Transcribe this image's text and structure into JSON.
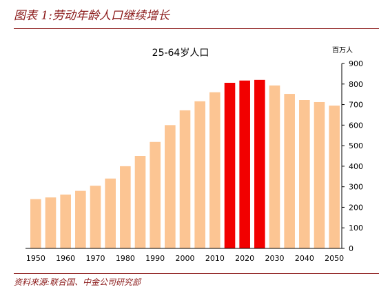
{
  "figure": {
    "title": "图表 1:劳动年龄人口继续增长",
    "source": "资料来源:联合国、中金公司研究部"
  },
  "chart_data": {
    "type": "bar",
    "title": "25-64岁人口",
    "ylabel": "百万人",
    "ylim": [
      0,
      900
    ],
    "yticks": [
      0,
      100,
      200,
      300,
      400,
      500,
      600,
      700,
      800,
      900
    ],
    "y_axis_position": "right",
    "grid": false,
    "categories": [
      1950,
      1955,
      1960,
      1965,
      1970,
      1975,
      1980,
      1985,
      1990,
      1995,
      2000,
      2005,
      2010,
      2015,
      2020,
      2025,
      2030,
      2035,
      2040,
      2045,
      2050
    ],
    "xtick_labels": [
      "1950",
      "1960",
      "1970",
      "1980",
      "1990",
      "2000",
      "2010",
      "2020",
      "2030",
      "2040",
      "2050"
    ],
    "values": [
      240,
      248,
      262,
      280,
      305,
      340,
      400,
      450,
      518,
      600,
      672,
      716,
      760,
      806,
      817,
      820,
      793,
      752,
      722,
      712,
      695
    ],
    "highlight_categories": [
      2015,
      2020,
      2025
    ],
    "colors": {
      "bar": "#fcc593",
      "highlight": "#f20000",
      "axis": "#000000"
    }
  }
}
